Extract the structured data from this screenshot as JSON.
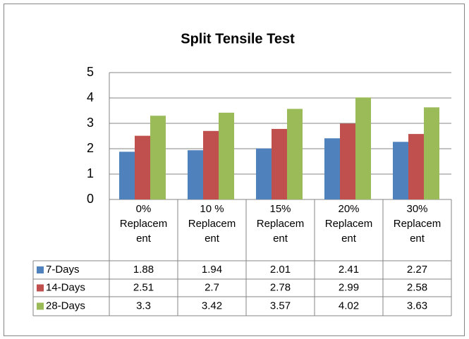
{
  "chart_data": {
    "type": "bar",
    "title": "Split Tensile Test",
    "categories": [
      "0% Replacement",
      "10 % Replacement",
      "15% Replacement",
      "20% Replacement",
      "30% Replacement"
    ],
    "series": [
      {
        "name": "7-Days",
        "color": "#4f81bd",
        "values": [
          1.88,
          1.94,
          2.01,
          2.41,
          2.27
        ]
      },
      {
        "name": "14-Days",
        "color": "#c0504d",
        "values": [
          2.51,
          2.7,
          2.78,
          2.99,
          2.58
        ]
      },
      {
        "name": "28-Days",
        "color": "#9bbb59",
        "values": [
          3.3,
          3.42,
          3.57,
          4.02,
          3.63
        ]
      }
    ],
    "ylim": [
      0,
      5
    ],
    "yticks": [
      0,
      1,
      2,
      3,
      4,
      5
    ],
    "grid": true
  }
}
